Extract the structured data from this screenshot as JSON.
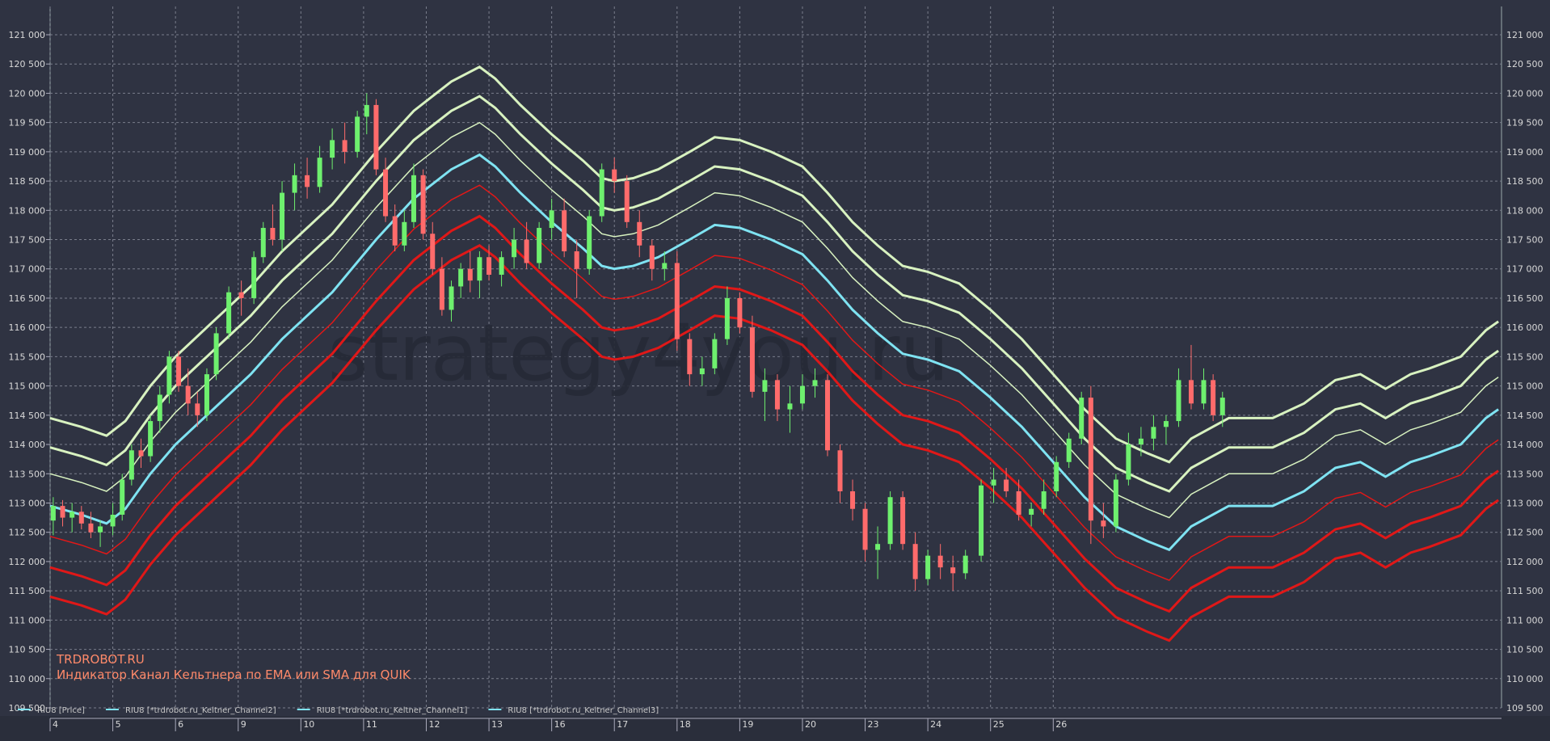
{
  "chart_data": {
    "type": "candlestick",
    "title": "",
    "annotations": [
      "TRDROBOT.RU",
      "Индикатор Канал Кельтнера по EMA или SMA для QUIK"
    ],
    "watermark": "strategy4you.ru",
    "ylim": [
      109500,
      121000
    ],
    "y_ticks": [
      "109 500",
      "110 000",
      "110 500",
      "111 000",
      "111 500",
      "112 000",
      "112 500",
      "113 000",
      "113 500",
      "114 000",
      "114 500",
      "115 000",
      "115 500",
      "116 000",
      "116 500",
      "117 000",
      "117 500",
      "118 000",
      "118 500",
      "119 000",
      "119 500",
      "120 000",
      "120 500",
      "121 000"
    ],
    "x_ticks": [
      "4",
      "5",
      "6",
      "9",
      "10",
      "11",
      "12",
      "13",
      "16",
      "17",
      "18",
      "19",
      "20",
      "23",
      "24",
      "25",
      "26"
    ],
    "legend": [
      {
        "label": "RIU8 [Price]",
        "color": "#7fe3f2"
      },
      {
        "label": "RIU8 [*trdrobot.ru_Keltner_Channel2]",
        "color": "#7fe3f2"
      },
      {
        "label": "RIU8 [*trdrobot.ru_Keltner_Channel1]",
        "color": "#7fe3f2"
      },
      {
        "label": "RIU8 [*trdrobot.ru_Keltner_Channel3]",
        "color": "#7fe3f2"
      }
    ],
    "colors": {
      "background": "#2f3342",
      "grid": "#7a7e8c",
      "axis_text": "#d8d8d8",
      "bull": "#6ef06e",
      "bear": "#ff6b6b",
      "middle_line": "#7fe3f2",
      "upper_bands": "#d8f2c0",
      "lower_bands": "#e01818",
      "annotation": "#ff8a6a"
    },
    "middle_line": [
      [
        4,
        112950
      ],
      [
        4.5,
        112800
      ],
      [
        4.9,
        112650
      ],
      [
        5.2,
        112900
      ],
      [
        5.6,
        113500
      ],
      [
        6,
        114000
      ],
      [
        6.6,
        114600
      ],
      [
        7.2,
        115200
      ],
      [
        7.7,
        115800
      ],
      [
        8.5,
        116600
      ],
      [
        9.2,
        117500
      ],
      [
        9.8,
        118200
      ],
      [
        10.4,
        118700
      ],
      [
        10.85,
        118950
      ],
      [
        11.1,
        118750
      ],
      [
        11.5,
        118300
      ],
      [
        12,
        117800
      ],
      [
        12.5,
        117350
      ],
      [
        12.8,
        117050
      ],
      [
        13,
        117000
      ],
      [
        13.3,
        117050
      ],
      [
        13.7,
        117200
      ],
      [
        14.2,
        117500
      ],
      [
        14.6,
        117750
      ],
      [
        15,
        117700
      ],
      [
        15.5,
        117500
      ],
      [
        16,
        117250
      ],
      [
        16.4,
        116800
      ],
      [
        16.8,
        116300
      ],
      [
        17.2,
        115900
      ],
      [
        17.6,
        115550
      ],
      [
        18,
        115450
      ],
      [
        18.5,
        115250
      ],
      [
        19,
        114800
      ],
      [
        19.5,
        114300
      ],
      [
        20,
        113700
      ],
      [
        20.5,
        113100
      ],
      [
        21,
        112600
      ],
      [
        21.5,
        112350
      ],
      [
        21.85,
        112200
      ],
      [
        22.2,
        112600
      ],
      [
        22.8,
        112950
      ],
      [
        23.5,
        112950
      ],
      [
        24,
        113200
      ],
      [
        24.5,
        113600
      ],
      [
        24.9,
        113700
      ],
      [
        25.3,
        113450
      ],
      [
        25.7,
        113700
      ],
      [
        26,
        113800
      ],
      [
        26.5,
        114000
      ],
      [
        26.9,
        114450
      ],
      [
        27.1,
        114600
      ]
    ],
    "band_offsets": [
      -1050,
      -1550,
      550,
      1000,
      1500
    ],
    "candles": [
      {
        "x": 4.05,
        "o": 112700,
        "h": 113100,
        "l": 112450,
        "c": 112950
      },
      {
        "x": 4.2,
        "o": 112950,
        "h": 113050,
        "l": 112600,
        "c": 112750
      },
      {
        "x": 4.35,
        "o": 112750,
        "h": 113000,
        "l": 112500,
        "c": 112850
      },
      {
        "x": 4.5,
        "o": 112850,
        "h": 112950,
        "l": 112550,
        "c": 112650
      },
      {
        "x": 4.65,
        "o": 112650,
        "h": 112850,
        "l": 112400,
        "c": 112500
      },
      {
        "x": 4.8,
        "o": 112500,
        "h": 112700,
        "l": 112250,
        "c": 112600
      },
      {
        "x": 5.0,
        "o": 112600,
        "h": 113000,
        "l": 112450,
        "c": 112800
      },
      {
        "x": 5.15,
        "o": 112800,
        "h": 113500,
        "l": 112700,
        "c": 113400
      },
      {
        "x": 5.3,
        "o": 113400,
        "h": 114000,
        "l": 113300,
        "c": 113900
      },
      {
        "x": 5.45,
        "o": 113900,
        "h": 114100,
        "l": 113600,
        "c": 113800
      },
      {
        "x": 5.6,
        "o": 113800,
        "h": 114500,
        "l": 113700,
        "c": 114400
      },
      {
        "x": 5.75,
        "o": 114400,
        "h": 115000,
        "l": 114200,
        "c": 114850
      },
      {
        "x": 5.9,
        "o": 114850,
        "h": 115600,
        "l": 114700,
        "c": 115500
      },
      {
        "x": 6.05,
        "o": 115500,
        "h": 115600,
        "l": 114900,
        "c": 115000
      },
      {
        "x": 6.2,
        "o": 115000,
        "h": 115300,
        "l": 114500,
        "c": 114700
      },
      {
        "x": 6.35,
        "o": 114700,
        "h": 114900,
        "l": 114300,
        "c": 114500
      },
      {
        "x": 6.5,
        "o": 114500,
        "h": 115300,
        "l": 114400,
        "c": 115200
      },
      {
        "x": 6.65,
        "o": 115200,
        "h": 116000,
        "l": 115100,
        "c": 115900
      },
      {
        "x": 6.85,
        "o": 115900,
        "h": 116700,
        "l": 115800,
        "c": 116600
      },
      {
        "x": 7.05,
        "o": 116600,
        "h": 116800,
        "l": 116200,
        "c": 116500
      },
      {
        "x": 7.25,
        "o": 116500,
        "h": 117300,
        "l": 116400,
        "c": 117200
      },
      {
        "x": 7.4,
        "o": 117200,
        "h": 117800,
        "l": 117100,
        "c": 117700
      },
      {
        "x": 7.55,
        "o": 117700,
        "h": 118100,
        "l": 117400,
        "c": 117500
      },
      {
        "x": 7.7,
        "o": 117500,
        "h": 118500,
        "l": 117300,
        "c": 118300
      },
      {
        "x": 7.9,
        "o": 118300,
        "h": 118800,
        "l": 118000,
        "c": 118600
      },
      {
        "x": 8.1,
        "o": 118600,
        "h": 118900,
        "l": 118200,
        "c": 118400
      },
      {
        "x": 8.3,
        "o": 118400,
        "h": 119100,
        "l": 118300,
        "c": 118900
      },
      {
        "x": 8.5,
        "o": 118900,
        "h": 119400,
        "l": 118700,
        "c": 119200
      },
      {
        "x": 8.7,
        "o": 119200,
        "h": 119500,
        "l": 118800,
        "c": 119000
      },
      {
        "x": 8.9,
        "o": 119000,
        "h": 119700,
        "l": 118900,
        "c": 119600
      },
      {
        "x": 9.05,
        "o": 119600,
        "h": 120000,
        "l": 119300,
        "c": 119800
      },
      {
        "x": 9.2,
        "o": 119800,
        "h": 119900,
        "l": 118600,
        "c": 118700
      },
      {
        "x": 9.35,
        "o": 118700,
        "h": 118900,
        "l": 117800,
        "c": 117900
      },
      {
        "x": 9.5,
        "o": 117900,
        "h": 118100,
        "l": 117300,
        "c": 117400
      },
      {
        "x": 9.65,
        "o": 117400,
        "h": 118000,
        "l": 117300,
        "c": 117800
      },
      {
        "x": 9.8,
        "o": 117800,
        "h": 118800,
        "l": 117700,
        "c": 118600
      },
      {
        "x": 9.95,
        "o": 118600,
        "h": 118700,
        "l": 117500,
        "c": 117600
      },
      {
        "x": 10.1,
        "o": 117600,
        "h": 117800,
        "l": 116900,
        "c": 117000
      },
      {
        "x": 10.25,
        "o": 117000,
        "h": 117200,
        "l": 116200,
        "c": 116300
      },
      {
        "x": 10.4,
        "o": 116300,
        "h": 116800,
        "l": 116100,
        "c": 116700
      },
      {
        "x": 10.55,
        "o": 116700,
        "h": 117100,
        "l": 116500,
        "c": 117000
      },
      {
        "x": 10.7,
        "o": 117000,
        "h": 117300,
        "l": 116600,
        "c": 116800
      },
      {
        "x": 10.85,
        "o": 116800,
        "h": 117300,
        "l": 116500,
        "c": 117200
      },
      {
        "x": 11.0,
        "o": 117200,
        "h": 117400,
        "l": 116800,
        "c": 116900
      },
      {
        "x": 11.2,
        "o": 116900,
        "h": 117300,
        "l": 116700,
        "c": 117200
      },
      {
        "x": 11.4,
        "o": 117200,
        "h": 117700,
        "l": 117000,
        "c": 117500
      },
      {
        "x": 11.6,
        "o": 117500,
        "h": 117800,
        "l": 117000,
        "c": 117100
      },
      {
        "x": 11.8,
        "o": 117100,
        "h": 117800,
        "l": 117000,
        "c": 117700
      },
      {
        "x": 12.0,
        "o": 117700,
        "h": 118200,
        "l": 117500,
        "c": 118000
      },
      {
        "x": 12.2,
        "o": 118000,
        "h": 118200,
        "l": 117200,
        "c": 117300
      },
      {
        "x": 12.4,
        "o": 117300,
        "h": 117500,
        "l": 116500,
        "c": 117000
      },
      {
        "x": 12.6,
        "o": 117000,
        "h": 118000,
        "l": 116900,
        "c": 117900
      },
      {
        "x": 12.8,
        "o": 117900,
        "h": 118800,
        "l": 117800,
        "c": 118700
      },
      {
        "x": 13.0,
        "o": 118700,
        "h": 118900,
        "l": 118300,
        "c": 118500
      },
      {
        "x": 13.2,
        "o": 118500,
        "h": 118600,
        "l": 117700,
        "c": 117800
      },
      {
        "x": 13.4,
        "o": 117800,
        "h": 118000,
        "l": 117200,
        "c": 117400
      },
      {
        "x": 13.6,
        "o": 117400,
        "h": 117500,
        "l": 116800,
        "c": 117000
      },
      {
        "x": 13.8,
        "o": 117000,
        "h": 117300,
        "l": 116800,
        "c": 117100
      },
      {
        "x": 14.0,
        "o": 117100,
        "h": 117300,
        "l": 115600,
        "c": 115800
      },
      {
        "x": 14.2,
        "o": 115800,
        "h": 115900,
        "l": 115000,
        "c": 115200
      },
      {
        "x": 14.4,
        "o": 115200,
        "h": 115500,
        "l": 115000,
        "c": 115300
      },
      {
        "x": 14.6,
        "o": 115300,
        "h": 115900,
        "l": 115200,
        "c": 115800
      },
      {
        "x": 14.8,
        "o": 115800,
        "h": 116700,
        "l": 115700,
        "c": 116500
      },
      {
        "x": 15.0,
        "o": 116500,
        "h": 116600,
        "l": 115900,
        "c": 116000
      },
      {
        "x": 15.2,
        "o": 116000,
        "h": 116200,
        "l": 114800,
        "c": 114900
      },
      {
        "x": 15.4,
        "o": 114900,
        "h": 115300,
        "l": 114400,
        "c": 115100
      },
      {
        "x": 15.6,
        "o": 115100,
        "h": 115200,
        "l": 114400,
        "c": 114600
      },
      {
        "x": 15.8,
        "o": 114600,
        "h": 115000,
        "l": 114200,
        "c": 114700
      },
      {
        "x": 16.0,
        "o": 114700,
        "h": 115200,
        "l": 114600,
        "c": 115000
      },
      {
        "x": 16.2,
        "o": 115000,
        "h": 115300,
        "l": 114800,
        "c": 115100
      },
      {
        "x": 16.4,
        "o": 115100,
        "h": 115200,
        "l": 113800,
        "c": 113900
      },
      {
        "x": 16.6,
        "o": 113900,
        "h": 114000,
        "l": 113000,
        "c": 113200
      },
      {
        "x": 16.8,
        "o": 113200,
        "h": 113400,
        "l": 112700,
        "c": 112900
      },
      {
        "x": 17.0,
        "o": 112900,
        "h": 113000,
        "l": 112000,
        "c": 112200
      },
      {
        "x": 17.2,
        "o": 112200,
        "h": 112600,
        "l": 111700,
        "c": 112300
      },
      {
        "x": 17.4,
        "o": 112300,
        "h": 113200,
        "l": 112200,
        "c": 113100
      },
      {
        "x": 17.6,
        "o": 113100,
        "h": 113200,
        "l": 112200,
        "c": 112300
      },
      {
        "x": 17.8,
        "o": 112300,
        "h": 112500,
        "l": 111500,
        "c": 111700
      },
      {
        "x": 18.0,
        "o": 111700,
        "h": 112200,
        "l": 111600,
        "c": 112100
      },
      {
        "x": 18.2,
        "o": 112100,
        "h": 112300,
        "l": 111700,
        "c": 111900
      },
      {
        "x": 18.4,
        "o": 111900,
        "h": 112100,
        "l": 111500,
        "c": 111800
      },
      {
        "x": 18.6,
        "o": 111800,
        "h": 112200,
        "l": 111700,
        "c": 112100
      },
      {
        "x": 18.85,
        "o": 112100,
        "h": 113400,
        "l": 112000,
        "c": 113300
      },
      {
        "x": 19.05,
        "o": 113300,
        "h": 113600,
        "l": 113000,
        "c": 113400
      },
      {
        "x": 19.25,
        "o": 113400,
        "h": 113600,
        "l": 113100,
        "c": 113200
      },
      {
        "x": 19.45,
        "o": 113200,
        "h": 113400,
        "l": 112700,
        "c": 112800
      },
      {
        "x": 19.65,
        "o": 112800,
        "h": 113000,
        "l": 112600,
        "c": 112900
      },
      {
        "x": 19.85,
        "o": 112900,
        "h": 113400,
        "l": 112800,
        "c": 113200
      },
      {
        "x": 20.05,
        "o": 113200,
        "h": 113800,
        "l": 113100,
        "c": 113700
      },
      {
        "x": 20.25,
        "o": 113700,
        "h": 114200,
        "l": 113600,
        "c": 114100
      },
      {
        "x": 20.45,
        "o": 114100,
        "h": 114900,
        "l": 114000,
        "c": 114800
      },
      {
        "x": 20.6,
        "o": 114800,
        "h": 115000,
        "l": 112300,
        "c": 112700
      },
      {
        "x": 20.8,
        "o": 112700,
        "h": 113000,
        "l": 112400,
        "c": 112600
      },
      {
        "x": 21.0,
        "o": 112600,
        "h": 113500,
        "l": 112500,
        "c": 113400
      },
      {
        "x": 21.2,
        "o": 113400,
        "h": 114200,
        "l": 113300,
        "c": 114000
      },
      {
        "x": 21.4,
        "o": 114000,
        "h": 114300,
        "l": 113800,
        "c": 114100
      },
      {
        "x": 21.6,
        "o": 114100,
        "h": 114500,
        "l": 113900,
        "c": 114300
      },
      {
        "x": 21.8,
        "o": 114300,
        "h": 114500,
        "l": 114000,
        "c": 114400
      },
      {
        "x": 22.0,
        "o": 114400,
        "h": 115300,
        "l": 114300,
        "c": 115100
      },
      {
        "x": 22.2,
        "o": 115100,
        "h": 115700,
        "l": 114600,
        "c": 114700
      },
      {
        "x": 22.4,
        "o": 114700,
        "h": 115300,
        "l": 114600,
        "c": 115100
      },
      {
        "x": 22.55,
        "o": 115100,
        "h": 115200,
        "l": 114400,
        "c": 114500
      },
      {
        "x": 22.7,
        "o": 114500,
        "h": 114900,
        "l": 114300,
        "c": 114800
      }
    ]
  }
}
